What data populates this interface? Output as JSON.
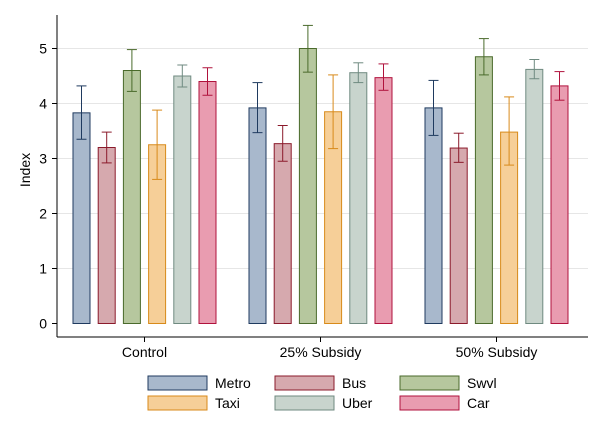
{
  "chart_data": {
    "type": "bar",
    "ylabel": "Index",
    "xlabel": "",
    "ylim": [
      0,
      5.5
    ],
    "yticks": [
      0,
      1,
      2,
      3,
      4,
      5
    ],
    "grid": true,
    "legend_position": "bottom",
    "categories": [
      "Control",
      "25% Subsidy",
      "50% Subsidy"
    ],
    "series": [
      {
        "name": "Metro",
        "fill": "#a8b8cc",
        "stroke": "#1f3a5f",
        "values": [
          3.83,
          3.92,
          3.92
        ],
        "ci_low": [
          3.35,
          3.47,
          3.42
        ],
        "ci_high": [
          4.32,
          4.38,
          4.42
        ]
      },
      {
        "name": "Bus",
        "fill": "#d6a9ae",
        "stroke": "#8b1a2b",
        "values": [
          3.2,
          3.27,
          3.19
        ],
        "ci_low": [
          2.92,
          2.95,
          2.93
        ],
        "ci_high": [
          3.48,
          3.6,
          3.46
        ]
      },
      {
        "name": "Swvl",
        "fill": "#b6c79e",
        "stroke": "#4a6a2b",
        "values": [
          4.6,
          5.0,
          4.85
        ],
        "ci_low": [
          4.22,
          4.57,
          4.52
        ],
        "ci_high": [
          4.98,
          5.42,
          5.18
        ]
      },
      {
        "name": "Taxi",
        "fill": "#f6cf98",
        "stroke": "#d88a1a",
        "values": [
          3.25,
          3.85,
          3.48
        ],
        "ci_low": [
          2.62,
          3.18,
          2.88
        ],
        "ci_high": [
          3.88,
          4.52,
          4.12
        ]
      },
      {
        "name": "Uber",
        "fill": "#c8d4cd",
        "stroke": "#6f8a80",
        "values": [
          4.5,
          4.56,
          4.62
        ],
        "ci_low": [
          4.3,
          4.38,
          4.45
        ],
        "ci_high": [
          4.7,
          4.74,
          4.8
        ]
      },
      {
        "name": "Car",
        "fill": "#e99cb0",
        "stroke": "#b0123c",
        "values": [
          4.4,
          4.47,
          4.32
        ],
        "ci_low": [
          4.15,
          4.24,
          4.06
        ],
        "ci_high": [
          4.65,
          4.72,
          4.58
        ]
      }
    ]
  }
}
